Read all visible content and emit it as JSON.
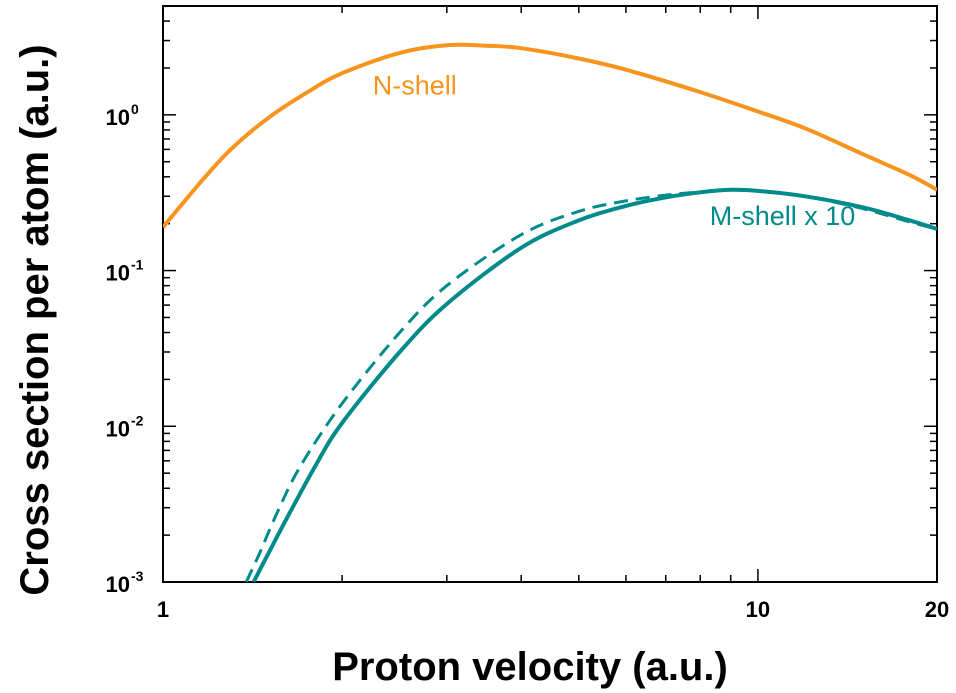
{
  "chart_data": {
    "type": "line",
    "xlabel": "Proton velocity (a.u.)",
    "ylabel": "Cross section per atom (a.u.)",
    "x_scale": "log",
    "y_scale": "log",
    "xlim": [
      1,
      20
    ],
    "ylim": [
      0.001,
      5
    ],
    "x_ticks": [
      {
        "value": 1,
        "label": "1"
      },
      {
        "value": 10,
        "label": "10"
      },
      {
        "value": 20,
        "label": "20"
      }
    ],
    "y_ticks": [
      {
        "value": 0.001,
        "base": "10",
        "exponent": "-3"
      },
      {
        "value": 0.01,
        "base": "10",
        "exponent": "-2"
      },
      {
        "value": 0.1,
        "base": "10",
        "exponent": "-1"
      },
      {
        "value": 1,
        "base": "10",
        "exponent": "0"
      }
    ],
    "grid": false,
    "annotations": [
      {
        "text": "N-shell",
        "series": "n_shell",
        "x": 2.65,
        "y": 1.35
      },
      {
        "text": "M-shell x 10",
        "series": "m_shell",
        "x": 11.0,
        "y": 0.196
      }
    ],
    "series": [
      {
        "key": "n_shell",
        "style": "solid",
        "color": "#f7941d",
        "points": [
          [
            1.0,
            0.19
          ],
          [
            1.15,
            0.36
          ],
          [
            1.3,
            0.6
          ],
          [
            1.5,
            0.95
          ],
          [
            1.75,
            1.4
          ],
          [
            2.0,
            1.85
          ],
          [
            2.5,
            2.5
          ],
          [
            3.0,
            2.8
          ],
          [
            3.5,
            2.78
          ],
          [
            4.0,
            2.68
          ],
          [
            5.0,
            2.3
          ],
          [
            6.0,
            1.95
          ],
          [
            8.0,
            1.4
          ],
          [
            10.0,
            1.05
          ],
          [
            12.0,
            0.82
          ],
          [
            15.0,
            0.56
          ],
          [
            18.0,
            0.41
          ],
          [
            20.0,
            0.33
          ]
        ]
      },
      {
        "key": "m_shell",
        "style": "solid",
        "color": "#008b8b",
        "points": [
          [
            1.42,
            0.001
          ],
          [
            1.5,
            0.0015
          ],
          [
            1.6,
            0.0024
          ],
          [
            1.8,
            0.0055
          ],
          [
            2.0,
            0.0105
          ],
          [
            2.5,
            0.03
          ],
          [
            3.0,
            0.061
          ],
          [
            4.0,
            0.14
          ],
          [
            5.0,
            0.21
          ],
          [
            6.0,
            0.26
          ],
          [
            7.0,
            0.295
          ],
          [
            8.0,
            0.318
          ],
          [
            9.0,
            0.33
          ],
          [
            10.0,
            0.325
          ],
          [
            12.0,
            0.3
          ],
          [
            15.0,
            0.255
          ],
          [
            18.0,
            0.21
          ],
          [
            20.0,
            0.185
          ]
        ]
      },
      {
        "key": "m_shell_dashed",
        "style": "dashed",
        "color": "#008b8b",
        "points": [
          [
            1.38,
            0.001
          ],
          [
            1.45,
            0.0015
          ],
          [
            1.55,
            0.0027
          ],
          [
            1.7,
            0.0055
          ],
          [
            2.0,
            0.014
          ],
          [
            2.5,
            0.04
          ],
          [
            3.0,
            0.08
          ],
          [
            4.0,
            0.17
          ],
          [
            5.0,
            0.24
          ],
          [
            6.0,
            0.28
          ],
          [
            7.0,
            0.305
          ],
          [
            8.0,
            0.32
          ],
          [
            9.0,
            0.33
          ],
          [
            10.0,
            0.325
          ],
          [
            12.0,
            0.3
          ],
          [
            15.0,
            0.25
          ],
          [
            18.0,
            0.205
          ],
          [
            20.0,
            0.185
          ]
        ]
      }
    ]
  }
}
